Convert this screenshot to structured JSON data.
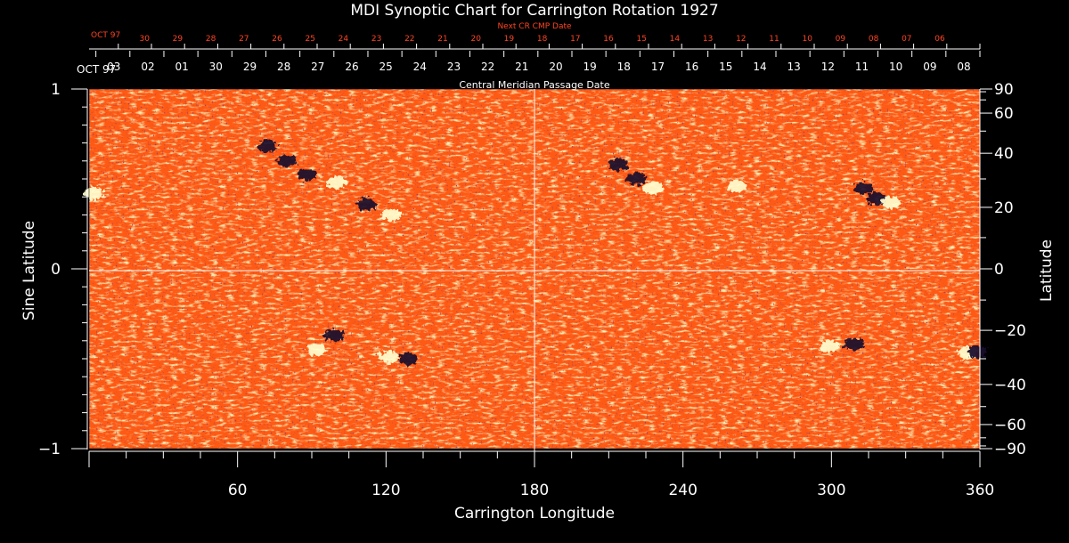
{
  "chart_data": {
    "type": "heatmap",
    "title": "MDI Synoptic Chart for Carrington Rotation 1927",
    "xlabel": "Carrington Longitude",
    "ylabel": "Sine Latitude",
    "y2label": "Latitude",
    "xlim": [
      0,
      360
    ],
    "ylim": [
      -1,
      1
    ],
    "x_ticks": [
      "60",
      "120",
      "180",
      "240",
      "300",
      "360"
    ],
    "y_ticks": [
      "1",
      "0",
      "−1"
    ],
    "lat_ticks": [
      "90",
      "60",
      "40",
      "20",
      "0",
      "−20",
      "−40",
      "−60",
      "−90"
    ],
    "lat_values": [
      90,
      60,
      40,
      20,
      0,
      -20,
      -40,
      -60,
      -90
    ],
    "bottom_axis": {
      "title": "Central Meridian Passage Date",
      "month_label": "OCT 97",
      "dates": [
        "03",
        "02",
        "01",
        "30",
        "29",
        "28",
        "27",
        "26",
        "25",
        "24",
        "23",
        "22",
        "21",
        "20",
        "19",
        "18",
        "17",
        "16",
        "15",
        "14",
        "13",
        "12",
        "11",
        "10",
        "09",
        "08"
      ]
    },
    "top_axis": {
      "title": "Next CR CMP Date",
      "month_label": "OCT 97",
      "dates": [
        "30",
        "29",
        "28",
        "27",
        "26",
        "25",
        "24",
        "23",
        "22",
        "21",
        "20",
        "19",
        "18",
        "17",
        "16",
        "15",
        "14",
        "13",
        "12",
        "11",
        "10",
        "09",
        "08",
        "07",
        "06"
      ]
    },
    "grid_lines": {
      "longitude": [
        180
      ],
      "sine_latitude": [
        0
      ]
    },
    "colors": {
      "background": "#000000",
      "field_neutral": "#ff5a14",
      "positive_polarity": "#ffffd0",
      "negative_polarity": "#14082e",
      "axis": "#ffffff",
      "top_axis_text": "#ff4422"
    },
    "active_regions": [
      {
        "lon": 72,
        "sinlat": 0.68,
        "polarity": "negative"
      },
      {
        "lon": 80,
        "sinlat": 0.6,
        "polarity": "negative"
      },
      {
        "lon": 88,
        "sinlat": 0.52,
        "polarity": "negative"
      },
      {
        "lon": 100,
        "sinlat": 0.48,
        "polarity": "positive"
      },
      {
        "lon": 112,
        "sinlat": 0.36,
        "polarity": "negative"
      },
      {
        "lon": 122,
        "sinlat": 0.3,
        "polarity": "positive"
      },
      {
        "lon": 2,
        "sinlat": 0.42,
        "polarity": "positive"
      },
      {
        "lon": 214,
        "sinlat": 0.58,
        "polarity": "negative"
      },
      {
        "lon": 221,
        "sinlat": 0.5,
        "polarity": "negative"
      },
      {
        "lon": 228,
        "sinlat": 0.45,
        "polarity": "positive"
      },
      {
        "lon": 262,
        "sinlat": 0.46,
        "polarity": "positive"
      },
      {
        "lon": 313,
        "sinlat": 0.45,
        "polarity": "negative"
      },
      {
        "lon": 318,
        "sinlat": 0.39,
        "polarity": "negative"
      },
      {
        "lon": 324,
        "sinlat": 0.37,
        "polarity": "positive"
      },
      {
        "lon": 99,
        "sinlat": -0.37,
        "polarity": "negative"
      },
      {
        "lon": 92,
        "sinlat": -0.45,
        "polarity": "positive"
      },
      {
        "lon": 121,
        "sinlat": -0.49,
        "polarity": "positive"
      },
      {
        "lon": 129,
        "sinlat": -0.5,
        "polarity": "negative"
      },
      {
        "lon": 299,
        "sinlat": -0.43,
        "polarity": "positive"
      },
      {
        "lon": 309,
        "sinlat": -0.42,
        "polarity": "negative"
      },
      {
        "lon": 355,
        "sinlat": -0.47,
        "polarity": "positive"
      },
      {
        "lon": 359,
        "sinlat": -0.46,
        "polarity": "negative"
      }
    ]
  }
}
